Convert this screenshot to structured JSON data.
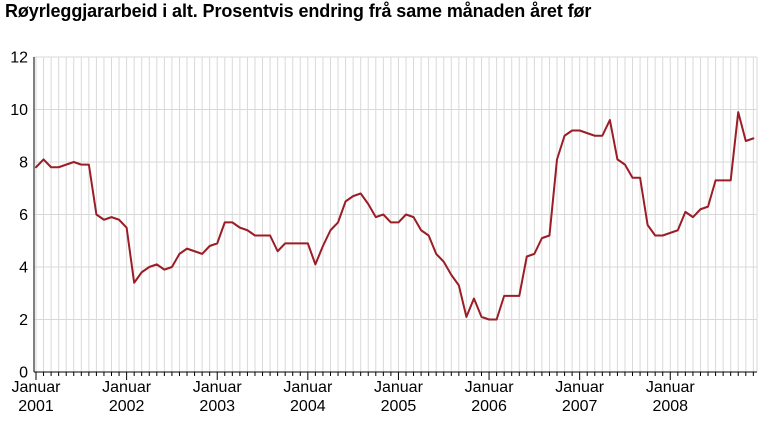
{
  "chart_data": {
    "type": "line",
    "title": "Røyrleggjararbeid i alt. Prosentvis endring frå same månaden året før",
    "xlabel": "",
    "ylabel": "",
    "ylim": [
      0,
      12
    ],
    "yticks": [
      "0",
      "2",
      "4",
      "6",
      "8",
      "10",
      "12"
    ],
    "xtick_labels": [
      [
        "Januar",
        "2001"
      ],
      [
        "Januar",
        "2002"
      ],
      [
        "Januar",
        "2003"
      ],
      [
        "Januar",
        "2004"
      ],
      [
        "Januar",
        "2005"
      ],
      [
        "Januar",
        "2006"
      ],
      [
        "Januar",
        "2007"
      ],
      [
        "Januar",
        "2008"
      ]
    ],
    "grid": true,
    "line_color": "#9b1d26",
    "series": [
      {
        "x": [
          "2001-01",
          "2001-02",
          "2001-03",
          "2001-04",
          "2001-05",
          "2001-06",
          "2001-07",
          "2001-08",
          "2001-09",
          "2001-10",
          "2001-11",
          "2001-12",
          "2002-01",
          "2002-02",
          "2002-03",
          "2002-04",
          "2002-05",
          "2002-06",
          "2002-07",
          "2002-08",
          "2002-09",
          "2002-10",
          "2002-11",
          "2002-12",
          "2003-01",
          "2003-02",
          "2003-03",
          "2003-04",
          "2003-05",
          "2003-06",
          "2003-07",
          "2003-08",
          "2003-09",
          "2003-10",
          "2003-11",
          "2003-12",
          "2004-01",
          "2004-02",
          "2004-03",
          "2004-04",
          "2004-05",
          "2004-06",
          "2004-07",
          "2004-08",
          "2004-09",
          "2004-10",
          "2004-11",
          "2004-12",
          "2005-01",
          "2005-02",
          "2005-03",
          "2005-04",
          "2005-05",
          "2005-06",
          "2005-07",
          "2005-08",
          "2005-09",
          "2005-10",
          "2005-11",
          "2005-12",
          "2006-01",
          "2006-02",
          "2006-03",
          "2006-04",
          "2006-05",
          "2006-06",
          "2006-07",
          "2006-08",
          "2006-09",
          "2006-10",
          "2006-11",
          "2006-12",
          "2007-01",
          "2007-02",
          "2007-03",
          "2007-04",
          "2007-05",
          "2007-06",
          "2007-07",
          "2007-08",
          "2007-09",
          "2007-10",
          "2007-11",
          "2007-12",
          "2008-01",
          "2008-02",
          "2008-03",
          "2008-04",
          "2008-05",
          "2008-06",
          "2008-07",
          "2008-08",
          "2008-09",
          "2008-10",
          "2008-11",
          "2008-12"
        ],
        "values": [
          7.8,
          8.1,
          7.8,
          7.8,
          7.9,
          8.0,
          7.9,
          7.9,
          6.0,
          5.8,
          5.9,
          5.8,
          5.5,
          3.4,
          3.8,
          4.0,
          4.1,
          3.9,
          4.0,
          4.5,
          4.7,
          4.6,
          4.5,
          4.8,
          4.9,
          5.7,
          5.7,
          5.5,
          5.4,
          5.2,
          5.2,
          5.2,
          4.6,
          4.9,
          4.9,
          4.9,
          4.9,
          4.1,
          4.8,
          5.4,
          5.7,
          6.5,
          6.7,
          6.8,
          6.4,
          5.9,
          6.0,
          5.7,
          5.7,
          6.0,
          5.9,
          5.4,
          5.2,
          4.5,
          4.2,
          3.7,
          3.3,
          2.1,
          2.8,
          2.1,
          2.0,
          2.0,
          2.9,
          2.9,
          2.9,
          4.4,
          4.5,
          5.1,
          5.2,
          8.1,
          9.0,
          9.2,
          9.2,
          9.1,
          9.0,
          9.0,
          9.6,
          8.1,
          7.9,
          7.4,
          7.4,
          5.6,
          5.2,
          5.2,
          5.3,
          5.4,
          6.1,
          5.9,
          6.2,
          6.3,
          7.3,
          7.3,
          7.3,
          9.9,
          8.8,
          8.9
        ]
      }
    ]
  }
}
